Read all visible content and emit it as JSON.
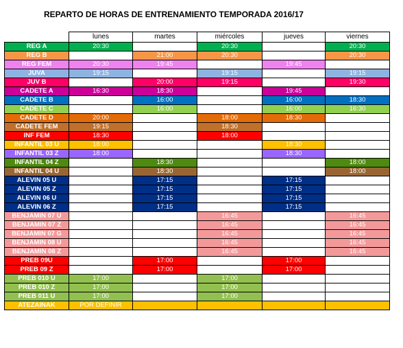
{
  "title": "REPARTO DE HORAS DE ENTRENAMIENTO TEMPORADA 2016/17",
  "days": [
    "lunes",
    "martes",
    "miércoles",
    "jueves",
    "viernes"
  ],
  "rows": [
    {
      "name": "REG A",
      "bg": "#00b050",
      "fg": "#ffffff",
      "cells": [
        {
          "t": "20:30",
          "bg": "#00b050",
          "fg": "#ffffff"
        },
        {
          "t": "",
          "bg": "#ffffff"
        },
        {
          "t": "20:30",
          "bg": "#00b050",
          "fg": "#ffffff"
        },
        {
          "t": "",
          "bg": "#ffffff"
        },
        {
          "t": "20:30",
          "bg": "#00b050",
          "fg": "#ffffff"
        }
      ]
    },
    {
      "name": "REG B",
      "bg": "#f79646",
      "fg": "#ffffff",
      "cells": [
        {
          "t": "",
          "bg": "#ffffff"
        },
        {
          "t": "21:00",
          "bg": "#f79646",
          "fg": "#ffffff"
        },
        {
          "t": "20:30",
          "bg": "#f79646",
          "fg": "#ffffff"
        },
        {
          "t": "",
          "bg": "#ffffff"
        },
        {
          "t": "20:30",
          "bg": "#f79646",
          "fg": "#ffffff"
        }
      ]
    },
    {
      "name": "REG FEM",
      "bg": "#ee82ee",
      "fg": "#ffffff",
      "cells": [
        {
          "t": "20:30",
          "bg": "#ee82ee",
          "fg": "#ffffff"
        },
        {
          "t": "19:45",
          "bg": "#ee82ee",
          "fg": "#ffffff"
        },
        {
          "t": "",
          "bg": "#ffffff"
        },
        {
          "t": "19:45",
          "bg": "#ee82ee",
          "fg": "#ffffff"
        },
        {
          "t": "",
          "bg": "#ffffff"
        }
      ]
    },
    {
      "name": "JUVA",
      "bg": "#8db3e2",
      "fg": "#ffffff",
      "cells": [
        {
          "t": "19:15",
          "bg": "#8db3e2",
          "fg": "#ffffff"
        },
        {
          "t": "",
          "bg": "#ffffff"
        },
        {
          "t": "19:15",
          "bg": "#8db3e2",
          "fg": "#ffffff"
        },
        {
          "t": "",
          "bg": "#ffffff"
        },
        {
          "t": "19:15",
          "bg": "#8db3e2",
          "fg": "#ffffff"
        }
      ]
    },
    {
      "name": "JUV B",
      "bg": "#ff0066",
      "fg": "#ffffff",
      "cells": [
        {
          "t": "",
          "bg": "#ffffff"
        },
        {
          "t": "20:00",
          "bg": "#ff0066",
          "fg": "#ffffff"
        },
        {
          "t": "19:15",
          "bg": "#ff0066",
          "fg": "#ffffff"
        },
        {
          "t": "",
          "bg": "#ffffff"
        },
        {
          "t": "19:30",
          "bg": "#ff0066",
          "fg": "#ffffff"
        }
      ]
    },
    {
      "name": "CADETE A",
      "bg": "#cc0099",
      "fg": "#ffffff",
      "cells": [
        {
          "t": "16:30",
          "bg": "#cc0099",
          "fg": "#ffffff"
        },
        {
          "t": "18:30",
          "bg": "#cc0099",
          "fg": "#ffffff"
        },
        {
          "t": "",
          "bg": "#ffffff"
        },
        {
          "t": "19:45",
          "bg": "#cc0099",
          "fg": "#ffffff"
        },
        {
          "t": "",
          "bg": "#ffffff"
        }
      ]
    },
    {
      "name": "CADETE B",
      "bg": "#0070c0",
      "fg": "#ffffff",
      "cells": [
        {
          "t": "",
          "bg": "#ffffff"
        },
        {
          "t": "16:00",
          "bg": "#0070c0",
          "fg": "#ffffff"
        },
        {
          "t": "",
          "bg": "#ffffff"
        },
        {
          "t": "16:00",
          "bg": "#0070c0",
          "fg": "#ffffff"
        },
        {
          "t": "18:30",
          "bg": "#0070c0",
          "fg": "#ffffff"
        }
      ]
    },
    {
      "name": "CADETE C",
      "bg": "#92d050",
      "fg": "#ffffff",
      "cells": [
        {
          "t": "",
          "bg": "#ffffff"
        },
        {
          "t": "16:00",
          "bg": "#92d050",
          "fg": "#ffffff"
        },
        {
          "t": "",
          "bg": "#ffffff"
        },
        {
          "t": "16:00",
          "bg": "#92d050",
          "fg": "#ffffff"
        },
        {
          "t": "16:30",
          "bg": "#92d050",
          "fg": "#ffffff"
        }
      ]
    },
    {
      "name": "CADETE D",
      "bg": "#e36c09",
      "fg": "#ffffff",
      "cells": [
        {
          "t": "20:00",
          "bg": "#e36c09",
          "fg": "#ffffff"
        },
        {
          "t": "",
          "bg": "#ffffff"
        },
        {
          "t": "18:00",
          "bg": "#e36c09",
          "fg": "#ffffff"
        },
        {
          "t": "18:30",
          "bg": "#e36c09",
          "fg": "#ffffff"
        },
        {
          "t": "",
          "bg": "#ffffff"
        }
      ]
    },
    {
      "name": "CADETE FEM",
      "bg": "#c0702a",
      "fg": "#ffffff",
      "cells": [
        {
          "t": "19:15",
          "bg": "#c0702a",
          "fg": "#ffffff"
        },
        {
          "t": "",
          "bg": "#ffffff"
        },
        {
          "t": "18:30",
          "bg": "#c0702a",
          "fg": "#ffffff"
        },
        {
          "t": "",
          "bg": "#ffffff"
        },
        {
          "t": "",
          "bg": "#ffffff"
        }
      ]
    },
    {
      "name": "INF FEM",
      "bg": "#ff0000",
      "fg": "#ffffff",
      "cells": [
        {
          "t": "18:30",
          "bg": "#ff0000",
          "fg": "#ffffff"
        },
        {
          "t": "",
          "bg": "#ffffff"
        },
        {
          "t": "18:00",
          "bg": "#ff0000",
          "fg": "#ffffff"
        },
        {
          "t": "",
          "bg": "#ffffff"
        },
        {
          "t": "",
          "bg": "#ffffff"
        }
      ]
    },
    {
      "name": "INFANTIL 03 U",
      "bg": "#ffc000",
      "fg": "#ffffff",
      "cells": [
        {
          "t": "18:00",
          "bg": "#ffc000",
          "fg": "#ffffff"
        },
        {
          "t": "",
          "bg": "#ffffff"
        },
        {
          "t": "",
          "bg": "#ffffff"
        },
        {
          "t": "18:30",
          "bg": "#ffc000",
          "fg": "#ffffff"
        },
        {
          "t": "",
          "bg": "#ffffff"
        }
      ]
    },
    {
      "name": "INFANTIL 03 Z",
      "bg": "#9966ff",
      "fg": "#ffffff",
      "cells": [
        {
          "t": "18:00",
          "bg": "#9966ff",
          "fg": "#ffffff"
        },
        {
          "t": "",
          "bg": "#ffffff"
        },
        {
          "t": "",
          "bg": "#ffffff"
        },
        {
          "t": "18:30",
          "bg": "#9966ff",
          "fg": "#ffffff"
        },
        {
          "t": "",
          "bg": "#ffffff"
        }
      ]
    },
    {
      "name": "INFANTIL 04 Z",
      "bg": "#4f8a10",
      "fg": "#ffffff",
      "cells": [
        {
          "t": "",
          "bg": "#ffffff"
        },
        {
          "t": "18:30",
          "bg": "#4f8a10",
          "fg": "#ffffff"
        },
        {
          "t": "",
          "bg": "#ffffff"
        },
        {
          "t": "",
          "bg": "#ffffff"
        },
        {
          "t": "18:00",
          "bg": "#4f8a10",
          "fg": "#ffffff"
        }
      ]
    },
    {
      "name": "INFANTIL 04 U",
      "bg": "#996633",
      "fg": "#ffffff",
      "cells": [
        {
          "t": "",
          "bg": "#ffffff"
        },
        {
          "t": "18:30",
          "bg": "#996633",
          "fg": "#ffffff"
        },
        {
          "t": "",
          "bg": "#ffffff"
        },
        {
          "t": "",
          "bg": "#ffffff"
        },
        {
          "t": "18:00",
          "bg": "#996633",
          "fg": "#ffffff"
        }
      ]
    },
    {
      "name": "ALEVIN 05 U",
      "bg": "#002f87",
      "fg": "#ffffff",
      "cells": [
        {
          "t": "",
          "bg": "#ffffff"
        },
        {
          "t": "17:15",
          "bg": "#002f87",
          "fg": "#ffffff"
        },
        {
          "t": "",
          "bg": "#ffffff"
        },
        {
          "t": "17:15",
          "bg": "#002f87",
          "fg": "#ffffff"
        },
        {
          "t": "",
          "bg": "#ffffff"
        }
      ]
    },
    {
      "name": "ALEVIN 05 Z",
      "bg": "#002f87",
      "fg": "#ffffff",
      "cells": [
        {
          "t": "",
          "bg": "#ffffff"
        },
        {
          "t": "17:15",
          "bg": "#002f87",
          "fg": "#ffffff"
        },
        {
          "t": "",
          "bg": "#ffffff"
        },
        {
          "t": "17:15",
          "bg": "#002f87",
          "fg": "#ffffff"
        },
        {
          "t": "",
          "bg": "#ffffff"
        }
      ]
    },
    {
      "name": "ALEVIN 06 U",
      "bg": "#002f87",
      "fg": "#ffffff",
      "cells": [
        {
          "t": "",
          "bg": "#ffffff"
        },
        {
          "t": "17:15",
          "bg": "#002f87",
          "fg": "#ffffff"
        },
        {
          "t": "",
          "bg": "#ffffff"
        },
        {
          "t": "17:15",
          "bg": "#002f87",
          "fg": "#ffffff"
        },
        {
          "t": "",
          "bg": "#ffffff"
        }
      ]
    },
    {
      "name": "ALEVIN 06 Z",
      "bg": "#002f87",
      "fg": "#ffffff",
      "cells": [
        {
          "t": "",
          "bg": "#ffffff"
        },
        {
          "t": "17:15",
          "bg": "#002f87",
          "fg": "#ffffff"
        },
        {
          "t": "",
          "bg": "#ffffff"
        },
        {
          "t": "17:15",
          "bg": "#002f87",
          "fg": "#ffffff"
        },
        {
          "t": "",
          "bg": "#ffffff"
        }
      ]
    },
    {
      "name": "BENJAMIN 07 U",
      "bg": "#f4999a",
      "fg": "#ffffff",
      "cells": [
        {
          "t": "",
          "bg": "#ffffff"
        },
        {
          "t": "",
          "bg": "#ffffff"
        },
        {
          "t": "16:45",
          "bg": "#f4999a",
          "fg": "#ffffff"
        },
        {
          "t": "",
          "bg": "#ffffff"
        },
        {
          "t": "16:45",
          "bg": "#f4999a",
          "fg": "#ffffff"
        }
      ]
    },
    {
      "name": "BENJAMIN 07 Z",
      "bg": "#f4999a",
      "fg": "#ffffff",
      "cells": [
        {
          "t": "",
          "bg": "#ffffff"
        },
        {
          "t": "",
          "bg": "#ffffff"
        },
        {
          "t": "16:45",
          "bg": "#f4999a",
          "fg": "#ffffff"
        },
        {
          "t": "",
          "bg": "#ffffff"
        },
        {
          "t": "16:45",
          "bg": "#f4999a",
          "fg": "#ffffff"
        }
      ]
    },
    {
      "name": "BENJAMIN 07 G",
      "bg": "#f4999a",
      "fg": "#ffffff",
      "cells": [
        {
          "t": "",
          "bg": "#ffffff"
        },
        {
          "t": "",
          "bg": "#ffffff"
        },
        {
          "t": "16:45",
          "bg": "#f4999a",
          "fg": "#ffffff"
        },
        {
          "t": "",
          "bg": "#ffffff"
        },
        {
          "t": "16:45",
          "bg": "#f4999a",
          "fg": "#ffffff"
        }
      ]
    },
    {
      "name": "BENJAMIN 08 U",
      "bg": "#f4999a",
      "fg": "#ffffff",
      "cells": [
        {
          "t": "",
          "bg": "#ffffff"
        },
        {
          "t": "",
          "bg": "#ffffff"
        },
        {
          "t": "16:45",
          "bg": "#f4999a",
          "fg": "#ffffff"
        },
        {
          "t": "",
          "bg": "#ffffff"
        },
        {
          "t": "16:45",
          "bg": "#f4999a",
          "fg": "#ffffff"
        }
      ]
    },
    {
      "name": "BENJAMIN 08 Z",
      "bg": "#f4999a",
      "fg": "#ffffff",
      "cells": [
        {
          "t": "",
          "bg": "#ffffff"
        },
        {
          "t": "",
          "bg": "#ffffff"
        },
        {
          "t": "16:45",
          "bg": "#f4999a",
          "fg": "#ffffff"
        },
        {
          "t": "",
          "bg": "#ffffff"
        },
        {
          "t": "16:45",
          "bg": "#f4999a",
          "fg": "#ffffff"
        }
      ]
    },
    {
      "name": "PREB 09U",
      "bg": "#ff0000",
      "fg": "#ffffff",
      "cells": [
        {
          "t": "",
          "bg": "#ffffff"
        },
        {
          "t": "17:00",
          "bg": "#ff0000",
          "fg": "#ffffff"
        },
        {
          "t": "",
          "bg": "#ffffff"
        },
        {
          "t": "17:00",
          "bg": "#ff0000",
          "fg": "#ffffff"
        },
        {
          "t": "",
          "bg": "#ffffff"
        }
      ]
    },
    {
      "name": "PREB 09 Z",
      "bg": "#ff0000",
      "fg": "#ffffff",
      "cells": [
        {
          "t": "",
          "bg": "#ffffff"
        },
        {
          "t": "17:00",
          "bg": "#ff0000",
          "fg": "#ffffff"
        },
        {
          "t": "",
          "bg": "#ffffff"
        },
        {
          "t": "17:00",
          "bg": "#ff0000",
          "fg": "#ffffff"
        },
        {
          "t": "",
          "bg": "#ffffff"
        }
      ]
    },
    {
      "name": "PREB 010 U",
      "bg": "#92c050",
      "fg": "#ffffff",
      "cells": [
        {
          "t": "17:00",
          "bg": "#92c050",
          "fg": "#ffffff"
        },
        {
          "t": "",
          "bg": "#ffffff"
        },
        {
          "t": "17:00",
          "bg": "#92c050",
          "fg": "#ffffff"
        },
        {
          "t": "",
          "bg": "#ffffff"
        },
        {
          "t": "",
          "bg": "#ffffff"
        }
      ]
    },
    {
      "name": "PREB 010 Z",
      "bg": "#92c050",
      "fg": "#ffffff",
      "cells": [
        {
          "t": "17:00",
          "bg": "#92c050",
          "fg": "#ffffff"
        },
        {
          "t": "",
          "bg": "#ffffff"
        },
        {
          "t": "17:00",
          "bg": "#92c050",
          "fg": "#ffffff"
        },
        {
          "t": "",
          "bg": "#ffffff"
        },
        {
          "t": "",
          "bg": "#ffffff"
        }
      ]
    },
    {
      "name": "PREB 011 U",
      "bg": "#92c050",
      "fg": "#ffffff",
      "cells": [
        {
          "t": "17:00",
          "bg": "#92c050",
          "fg": "#ffffff"
        },
        {
          "t": "",
          "bg": "#ffffff"
        },
        {
          "t": "17:00",
          "bg": "#92c050",
          "fg": "#ffffff"
        },
        {
          "t": "",
          "bg": "#ffffff"
        },
        {
          "t": "",
          "bg": "#ffffff"
        }
      ]
    },
    {
      "name": "ATEZAINAK",
      "bg": "#ffc000",
      "fg": "#ffffff",
      "cells": [
        {
          "t": "POR DEFINIR",
          "bg": "#ffc000",
          "fg": "#ffffff"
        },
        {
          "t": "",
          "bg": "#ffc000"
        },
        {
          "t": "",
          "bg": "#ffc000"
        },
        {
          "t": "",
          "bg": "#ffc000"
        },
        {
          "t": "",
          "bg": "#ffc000"
        }
      ]
    }
  ]
}
